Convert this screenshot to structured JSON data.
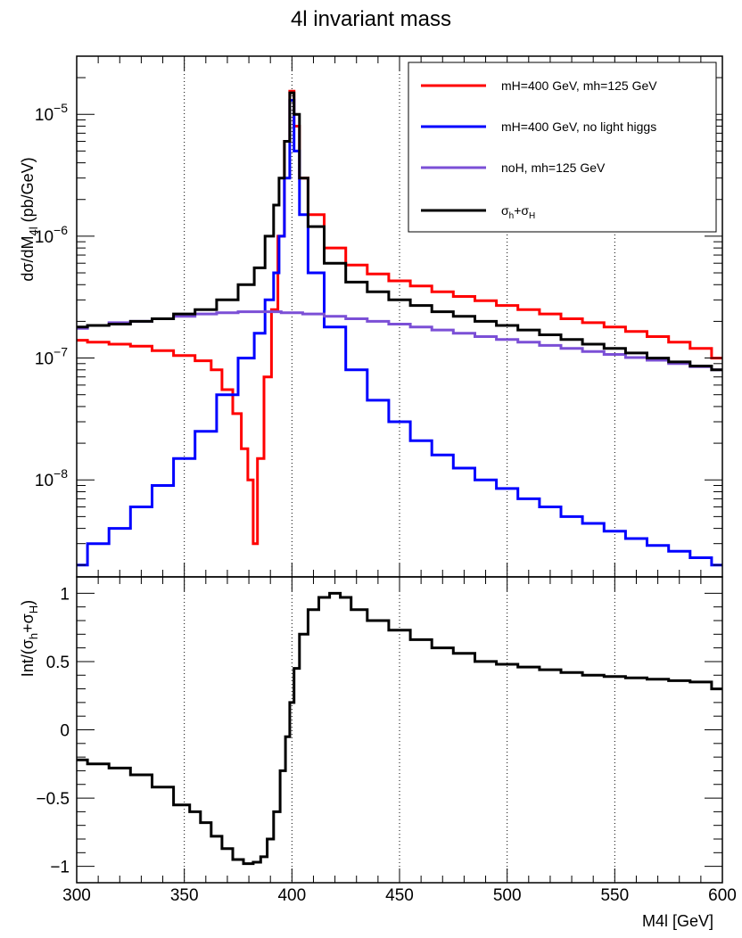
{
  "chart_data": [
    {
      "type": "line",
      "title": "4l invariant mass",
      "xlabel": "M4l [GeV]",
      "ylabel": "dσ/dM4l (pb/GeV)",
      "scale": "log",
      "xlim": [
        300,
        600
      ],
      "ylim": [
        1.6e-09,
        3e-05
      ],
      "grid": "vertical dotted",
      "legend_position": "top-right",
      "x_ticks": [
        "300",
        "350",
        "400",
        "450",
        "500",
        "550",
        "600"
      ],
      "y_ticks": [
        {
          "base": "10",
          "exp": "-8",
          "value": 1e-08
        },
        {
          "base": "10",
          "exp": "-7",
          "value": 1e-07
        },
        {
          "base": "10",
          "exp": "-6",
          "value": 1e-06
        },
        {
          "base": "10",
          "exp": "-5",
          "value": 1e-05
        }
      ],
      "series": [
        {
          "name": "mH=400 GeV, mh=125 GeV",
          "color": "#ff0000",
          "points": [
            [
              300,
              1.4e-07
            ],
            [
              310,
              1.35e-07
            ],
            [
              320,
              1.3e-07
            ],
            [
              330,
              1.25e-07
            ],
            [
              340,
              1.15e-07
            ],
            [
              350,
              1.05e-07
            ],
            [
              360,
              9.5e-08
            ],
            [
              365,
              8e-08
            ],
            [
              370,
              5.5e-08
            ],
            [
              375,
              3.5e-08
            ],
            [
              378,
              1.8e-08
            ],
            [
              381,
              1e-08
            ],
            [
              383,
              3e-09
            ],
            [
              385,
              1.5e-08
            ],
            [
              389,
              7e-08
            ],
            [
              392,
              2.5e-07
            ],
            [
              395,
              1e-06
            ],
            [
              398,
              6e-06
            ],
            [
              400,
              1.55e-05
            ],
            [
              402,
              8e-06
            ],
            [
              405,
              3e-06
            ],
            [
              410,
              1.5e-06
            ],
            [
              420,
              8e-07
            ],
            [
              430,
              5.8e-07
            ],
            [
              440,
              4.9e-07
            ],
            [
              450,
              4.3e-07
            ],
            [
              460,
              3.9e-07
            ],
            [
              470,
              3.5e-07
            ],
            [
              480,
              3.2e-07
            ],
            [
              490,
              2.95e-07
            ],
            [
              500,
              2.7e-07
            ],
            [
              510,
              2.5e-07
            ],
            [
              520,
              2.3e-07
            ],
            [
              530,
              2.1e-07
            ],
            [
              540,
              1.95e-07
            ],
            [
              550,
              1.8e-07
            ],
            [
              560,
              1.65e-07
            ],
            [
              570,
              1.5e-07
            ],
            [
              580,
              1.35e-07
            ],
            [
              590,
              1.2e-07
            ],
            [
              600,
              1e-07
            ]
          ]
        },
        {
          "name": "mH=400 GeV, no light higgs",
          "color": "#0000ff",
          "points": [
            [
              300,
              2e-09
            ],
            [
              310,
              3e-09
            ],
            [
              320,
              4e-09
            ],
            [
              330,
              6e-09
            ],
            [
              340,
              9e-09
            ],
            [
              350,
              1.5e-08
            ],
            [
              360,
              2.5e-08
            ],
            [
              370,
              5e-08
            ],
            [
              380,
              1e-07
            ],
            [
              385,
              1.6e-07
            ],
            [
              390,
              3e-07
            ],
            [
              393,
              5e-07
            ],
            [
              395,
              1e-06
            ],
            [
              398,
              3e-06
            ],
            [
              400,
              1.3e-05
            ],
            [
              402,
              5e-06
            ],
            [
              405,
              1.5e-06
            ],
            [
              410,
              5e-07
            ],
            [
              420,
              1.8e-07
            ],
            [
              430,
              8e-08
            ],
            [
              440,
              4.5e-08
            ],
            [
              450,
              3e-08
            ],
            [
              460,
              2.1e-08
            ],
            [
              470,
              1.6e-08
            ],
            [
              480,
              1.25e-08
            ],
            [
              490,
              1e-08
            ],
            [
              500,
              8.5e-09
            ],
            [
              510,
              7e-09
            ],
            [
              520,
              6e-09
            ],
            [
              530,
              5e-09
            ],
            [
              540,
              4.4e-09
            ],
            [
              550,
              3.8e-09
            ],
            [
              560,
              3.3e-09
            ],
            [
              570,
              2.9e-09
            ],
            [
              580,
              2.6e-09
            ],
            [
              590,
              2.3e-09
            ],
            [
              600,
              2e-09
            ]
          ]
        },
        {
          "name": "noH, mh=125 GeV",
          "color": "#7b4fd6",
          "points": [
            [
              300,
              1.75e-07
            ],
            [
              310,
              1.85e-07
            ],
            [
              320,
              1.95e-07
            ],
            [
              330,
              2e-07
            ],
            [
              340,
              2.1e-07
            ],
            [
              350,
              2.2e-07
            ],
            [
              360,
              2.3e-07
            ],
            [
              370,
              2.35e-07
            ],
            [
              380,
              2.4e-07
            ],
            [
              390,
              2.4e-07
            ],
            [
              400,
              2.35e-07
            ],
            [
              410,
              2.3e-07
            ],
            [
              420,
              2.2e-07
            ],
            [
              430,
              2.1e-07
            ],
            [
              440,
              2e-07
            ],
            [
              450,
              1.9e-07
            ],
            [
              460,
              1.8e-07
            ],
            [
              470,
              1.7e-07
            ],
            [
              480,
              1.6e-07
            ],
            [
              490,
              1.5e-07
            ],
            [
              500,
              1.42e-07
            ],
            [
              510,
              1.35e-07
            ],
            [
              520,
              1.27e-07
            ],
            [
              530,
              1.2e-07
            ],
            [
              540,
              1.13e-07
            ],
            [
              550,
              1.07e-07
            ],
            [
              560,
              1.01e-07
            ],
            [
              570,
              9.6e-08
            ],
            [
              580,
              9e-08
            ],
            [
              590,
              8.5e-08
            ],
            [
              600,
              8e-08
            ]
          ]
        },
        {
          "name": "σh+σH",
          "color": "#000000",
          "points": [
            [
              300,
              1.8e-07
            ],
            [
              310,
              1.85e-07
            ],
            [
              320,
              1.9e-07
            ],
            [
              330,
              2e-07
            ],
            [
              340,
              2.1e-07
            ],
            [
              350,
              2.3e-07
            ],
            [
              360,
              2.5e-07
            ],
            [
              370,
              3e-07
            ],
            [
              380,
              4e-07
            ],
            [
              385,
              5.5e-07
            ],
            [
              390,
              1e-06
            ],
            [
              393,
              1.8e-06
            ],
            [
              395,
              3e-06
            ],
            [
              398,
              6e-06
            ],
            [
              400,
              1.5e-05
            ],
            [
              402,
              1e-05
            ],
            [
              405,
              3e-06
            ],
            [
              410,
              1.2e-06
            ],
            [
              420,
              6e-07
            ],
            [
              430,
              4.2e-07
            ],
            [
              440,
              3.5e-07
            ],
            [
              450,
              3e-07
            ],
            [
              460,
              2.7e-07
            ],
            [
              470,
              2.4e-07
            ],
            [
              480,
              2.2e-07
            ],
            [
              490,
              2e-07
            ],
            [
              500,
              1.85e-07
            ],
            [
              510,
              1.7e-07
            ],
            [
              520,
              1.55e-07
            ],
            [
              530,
              1.42e-07
            ],
            [
              540,
              1.3e-07
            ],
            [
              550,
              1.2e-07
            ],
            [
              560,
              1.1e-07
            ],
            [
              570,
              1e-07
            ],
            [
              580,
              9.3e-08
            ],
            [
              590,
              8.6e-08
            ],
            [
              600,
              8e-08
            ]
          ]
        }
      ]
    },
    {
      "type": "line",
      "xlabel": "M4l [GeV]",
      "ylabel": "Int/(σh+σH)",
      "xlim": [
        300,
        600
      ],
      "ylim": [
        -1.12,
        1.12
      ],
      "grid": "vertical dotted",
      "x_ticks": [
        "300",
        "350",
        "400",
        "450",
        "500",
        "550",
        "600"
      ],
      "y_ticks": [
        {
          "label": "1",
          "value": 1
        },
        {
          "label": "0.5",
          "value": 0.5
        },
        {
          "label": "0",
          "value": 0
        },
        {
          "label": "−0.5",
          "value": -0.5
        },
        {
          "label": "−1",
          "value": -1
        }
      ],
      "series": [
        {
          "color": "#000000",
          "points": [
            [
              300,
              -0.22
            ],
            [
              310,
              -0.25
            ],
            [
              320,
              -0.28
            ],
            [
              330,
              -0.33
            ],
            [
              340,
              -0.42
            ],
            [
              350,
              -0.55
            ],
            [
              355,
              -0.6
            ],
            [
              360,
              -0.68
            ],
            [
              365,
              -0.78
            ],
            [
              370,
              -0.87
            ],
            [
              375,
              -0.95
            ],
            [
              380,
              -0.98
            ],
            [
              384,
              -0.97
            ],
            [
              387,
              -0.93
            ],
            [
              390,
              -0.8
            ],
            [
              393,
              -0.6
            ],
            [
              396,
              -0.3
            ],
            [
              398,
              -0.05
            ],
            [
              400,
              0.2
            ],
            [
              402,
              0.45
            ],
            [
              405,
              0.7
            ],
            [
              410,
              0.88
            ],
            [
              415,
              0.97
            ],
            [
              420,
              1.0
            ],
            [
              425,
              0.97
            ],
            [
              430,
              0.88
            ],
            [
              440,
              0.8
            ],
            [
              450,
              0.73
            ],
            [
              460,
              0.66
            ],
            [
              470,
              0.6
            ],
            [
              480,
              0.56
            ],
            [
              490,
              0.5
            ],
            [
              500,
              0.48
            ],
            [
              510,
              0.46
            ],
            [
              520,
              0.44
            ],
            [
              530,
              0.42
            ],
            [
              540,
              0.4
            ],
            [
              550,
              0.39
            ],
            [
              560,
              0.38
            ],
            [
              570,
              0.37
            ],
            [
              580,
              0.36
            ],
            [
              590,
              0.35
            ],
            [
              600,
              0.3
            ]
          ]
        }
      ]
    }
  ]
}
